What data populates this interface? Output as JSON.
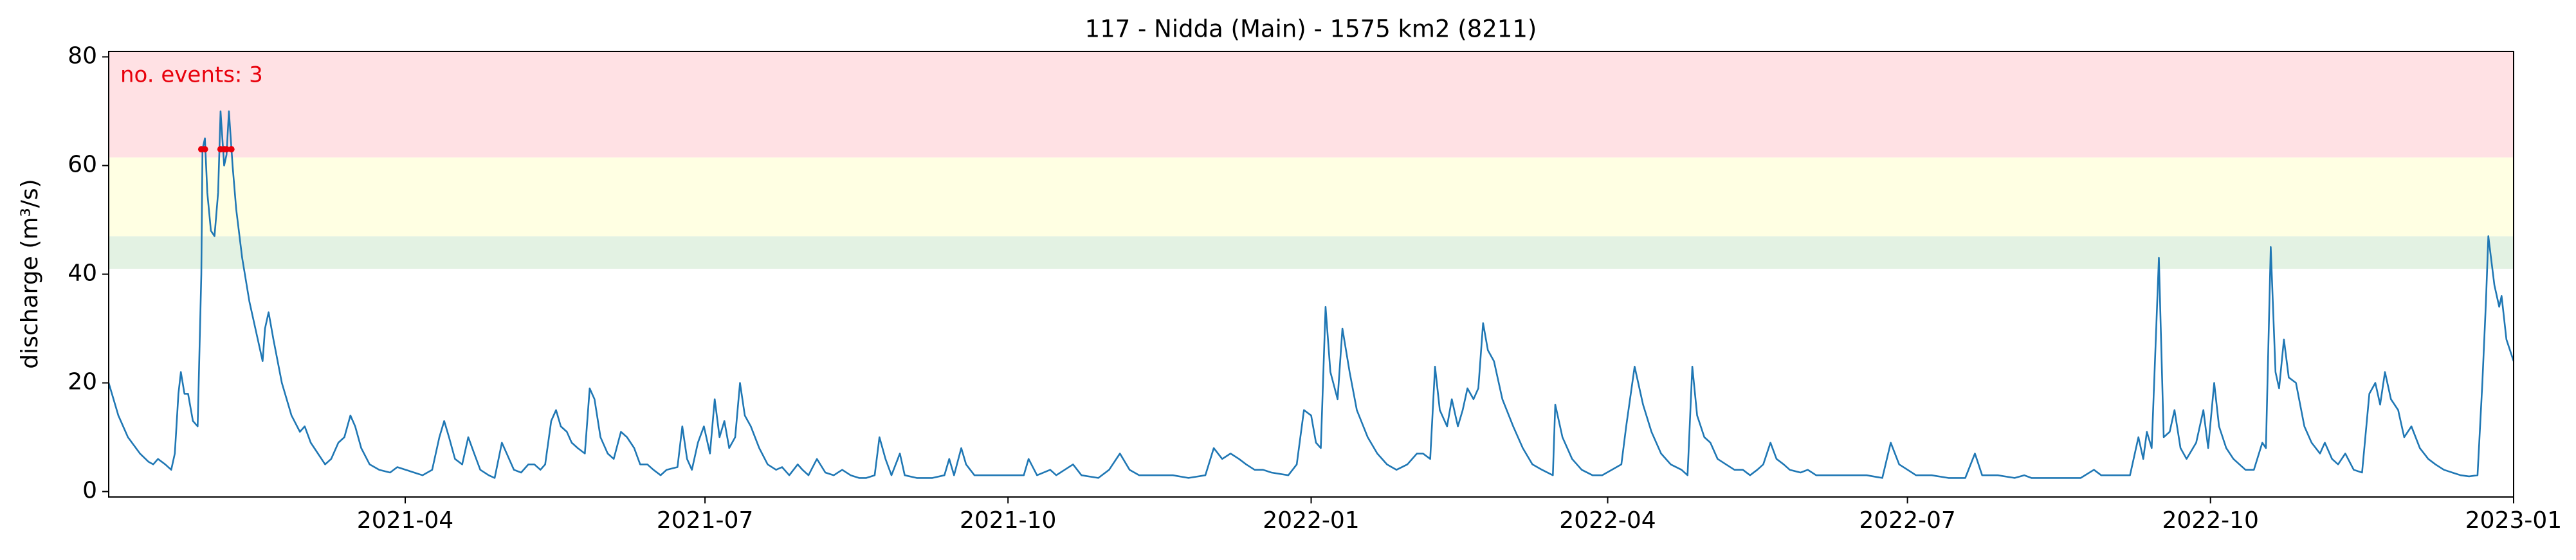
{
  "chart_data": {
    "type": "line",
    "title": "117 - Nidda (Main) - 1575 km2 (8211)",
    "y_label": "discharge (m³/s)",
    "annotation": "no. events: 3",
    "annotation_color": "#e8000b",
    "color": "#1f77b4",
    "x": [
      2021.0,
      2021.008,
      2021.016,
      2021.026,
      2021.033,
      2021.037,
      2021.041,
      2021.047,
      2021.052,
      2021.055,
      2021.058,
      2021.06,
      2021.063,
      2021.066,
      2021.07,
      2021.074,
      2021.077,
      2021.078,
      2021.08,
      2021.082,
      2021.085,
      2021.088,
      2021.091,
      2021.093,
      2021.096,
      2021.098,
      2021.1,
      2021.103,
      2021.106,
      2021.111,
      2021.117,
      2021.124,
      2021.128,
      2021.13,
      2021.133,
      2021.137,
      2021.144,
      2021.152,
      2021.159,
      2021.163,
      2021.168,
      2021.174,
      2021.18,
      2021.185,
      2021.191,
      2021.196,
      2021.201,
      2021.205,
      2021.21,
      2021.217,
      2021.225,
      2021.234,
      2021.24,
      2021.247,
      2021.254,
      2021.261,
      2021.269,
      2021.275,
      2021.279,
      2021.283,
      2021.288,
      2021.294,
      2021.299,
      2021.304,
      2021.309,
      2021.316,
      2021.321,
      2021.327,
      2021.331,
      2021.337,
      2021.343,
      2021.349,
      2021.354,
      2021.359,
      2021.363,
      2021.368,
      2021.372,
      2021.376,
      2021.381,
      2021.385,
      2021.39,
      2021.396,
      2021.4,
      2021.404,
      2021.409,
      2021.415,
      2021.42,
      2021.426,
      2021.431,
      2021.437,
      2021.442,
      2021.448,
      2021.453,
      2021.459,
      2021.464,
      2021.473,
      2021.477,
      2021.481,
      2021.485,
      2021.49,
      2021.495,
      2021.5,
      2021.504,
      2021.508,
      2021.512,
      2021.516,
      2021.521,
      2021.525,
      2021.529,
      2021.534,
      2021.541,
      2021.548,
      2021.555,
      2021.56,
      2021.566,
      2021.573,
      2021.577,
      2021.582,
      2021.589,
      2021.596,
      2021.603,
      2021.61,
      2021.617,
      2021.624,
      2021.63,
      2021.637,
      2021.641,
      2021.646,
      2021.651,
      2021.658,
      2021.662,
      2021.672,
      2021.685,
      2021.695,
      2021.699,
      2021.703,
      2021.709,
      2021.713,
      2021.72,
      2021.734,
      2021.747,
      2021.761,
      2021.765,
      2021.772,
      2021.783,
      2021.788,
      2021.802,
      2021.809,
      2021.823,
      2021.832,
      2021.841,
      2021.849,
      2021.857,
      2021.871,
      2021.885,
      2021.898,
      2021.912,
      2021.919,
      2021.926,
      2021.933,
      2021.94,
      2021.946,
      2021.953,
      2021.96,
      2021.967,
      2021.981,
      2021.988,
      2021.994,
      2022.0,
      2022.004,
      2022.008,
      2022.012,
      2022.016,
      2022.022,
      2022.026,
      2022.032,
      2022.038,
      2022.047,
      2022.055,
      2022.063,
      2022.071,
      2022.08,
      2022.088,
      2022.093,
      2022.099,
      2022.103,
      2022.107,
      2022.113,
      2022.117,
      2022.122,
      2022.126,
      2022.13,
      2022.135,
      2022.139,
      2022.143,
      2022.147,
      2022.152,
      2022.159,
      2022.168,
      2022.176,
      2022.184,
      2022.192,
      2022.201,
      2022.203,
      2022.209,
      2022.217,
      2022.225,
      2022.234,
      2022.242,
      2022.25,
      2022.258,
      2022.262,
      2022.269,
      2022.276,
      2022.283,
      2022.291,
      2022.299,
      2022.308,
      2022.313,
      2022.317,
      2022.321,
      2022.327,
      2022.332,
      2022.338,
      2022.345,
      2022.352,
      2022.359,
      2022.365,
      2022.371,
      2022.376,
      2022.382,
      2022.387,
      2022.393,
      2022.398,
      2022.407,
      2022.413,
      2022.42,
      2022.434,
      2022.448,
      2022.462,
      2022.475,
      2022.482,
      2022.489,
      2022.496,
      2022.503,
      2022.516,
      2022.53,
      2022.544,
      2022.552,
      2022.558,
      2022.571,
      2022.585,
      2022.593,
      2022.599,
      2022.613,
      2022.626,
      2022.64,
      2022.651,
      2022.657,
      2022.668,
      2022.681,
      2022.688,
      2022.692,
      2022.695,
      2022.699,
      2022.705,
      2022.709,
      2022.714,
      2022.718,
      2022.723,
      2022.728,
      2022.736,
      2022.742,
      2022.746,
      2022.751,
      2022.755,
      2022.761,
      2022.767,
      2022.772,
      2022.777,
      2022.784,
      2022.791,
      2022.794,
      2022.798,
      2022.802,
      2022.805,
      2022.809,
      2022.813,
      2022.819,
      2022.826,
      2022.832,
      2022.839,
      2022.843,
      2022.849,
      2022.854,
      2022.86,
      2022.867,
      2022.874,
      2022.88,
      2022.885,
      2022.889,
      2022.893,
      2022.898,
      2022.904,
      2022.909,
      2022.915,
      2022.922,
      2022.929,
      2022.935,
      2022.942,
      2022.949,
      2022.956,
      2022.963,
      2022.97,
      2022.974,
      2022.977,
      2022.979,
      2022.984,
      2022.988,
      2022.99,
      2022.994,
      2023.0
    ],
    "values": [
      20,
      14,
      10,
      7,
      5.5,
      5,
      6,
      5,
      4,
      7,
      18,
      22,
      18,
      18,
      13,
      12,
      40,
      63,
      65,
      55,
      48,
      47,
      55,
      70,
      60,
      62,
      70,
      60,
      52,
      43,
      35,
      28,
      24,
      30,
      33,
      28,
      20,
      14,
      11,
      12,
      9,
      7,
      5,
      6,
      9,
      10,
      14,
      12,
      8,
      5,
      4,
      3.5,
      4.5,
      4,
      3.5,
      3,
      4,
      10,
      13,
      10,
      6,
      5,
      10,
      7,
      4,
      3,
      2.5,
      9,
      7,
      4,
      3.5,
      5,
      5,
      4,
      5,
      13,
      15,
      12,
      11,
      9,
      8,
      7,
      19,
      17,
      10,
      7,
      6,
      11,
      10,
      8,
      5,
      5,
      4,
      3,
      4,
      4.5,
      12,
      6,
      4,
      9,
      12,
      7,
      17,
      10,
      13,
      8,
      10,
      20,
      14,
      12,
      8,
      5,
      4,
      4.5,
      3,
      5,
      4,
      3,
      6,
      3.5,
      3,
      4,
      3,
      2.5,
      2.5,
      3,
      10,
      6,
      3,
      7,
      3,
      2.5,
      2.5,
      3,
      6,
      3,
      8,
      5,
      3,
      3,
      3,
      3,
      6,
      3,
      4,
      3,
      5,
      3,
      2.5,
      4,
      7,
      4,
      3,
      3,
      3,
      2.5,
      3,
      8,
      6,
      7,
      6,
      5,
      4,
      4,
      3.5,
      3,
      5,
      15,
      14,
      9,
      8,
      34,
      22,
      17,
      30,
      22,
      15,
      10,
      7,
      5,
      4,
      5,
      7,
      7,
      6,
      23,
      15,
      12,
      17,
      12,
      15,
      19,
      17,
      19,
      31,
      26,
      24,
      17,
      12,
      8,
      5,
      4,
      3,
      16,
      10,
      6,
      4,
      3,
      3,
      4,
      5,
      12,
      23,
      16,
      11,
      7,
      5,
      4,
      3,
      23,
      14,
      10,
      9,
      6,
      5,
      4,
      4,
      3,
      4,
      5,
      9,
      6,
      5,
      4,
      3.5,
      4,
      3,
      3,
      3,
      3,
      2.5,
      9,
      5,
      4,
      3,
      3,
      2.5,
      2.5,
      7,
      3,
      3,
      2.5,
      3,
      2.5,
      2.5,
      2.5,
      2.5,
      4,
      3,
      3,
      3,
      10,
      6,
      11,
      8,
      43,
      10,
      11,
      15,
      8,
      6,
      9,
      15,
      8,
      20,
      12,
      8,
      6,
      5,
      4,
      4,
      9,
      8,
      45,
      22,
      19,
      28,
      21,
      20,
      12,
      9,
      7,
      9,
      6,
      5,
      7,
      4,
      3.5,
      18,
      20,
      16,
      22,
      17,
      15,
      10,
      12,
      8,
      6,
      5,
      4,
      3.5,
      3,
      2.8,
      3,
      20,
      35,
      47,
      38,
      34,
      36,
      28,
      24
    ],
    "bands": [
      {
        "ymin": 41,
        "ymax": 47,
        "color": "#e3f2e3"
      },
      {
        "ymin": 47,
        "ymax": 61.5,
        "color": "#ffffe3"
      },
      {
        "ymin": 61.5,
        "ymax": 81,
        "color": "#ffe1e4"
      }
    ],
    "events": [
      {
        "x": [
          2021.077,
          2021.08
        ],
        "y": 63
      },
      {
        "x": [
          2021.093,
          2021.096
        ],
        "y": 63
      },
      {
        "x": [
          2021.098,
          2021.102
        ],
        "y": 63
      }
    ],
    "event_color": "#e8000b",
    "xlim": [
      2021.0,
      2023.0
    ],
    "xticks": [
      {
        "value": 2021.2466,
        "label": "2021-04"
      },
      {
        "value": 2021.4959,
        "label": "2021-07"
      },
      {
        "value": 2021.7479,
        "label": "2021-10"
      },
      {
        "value": 2022.0,
        "label": "2022-01"
      },
      {
        "value": 2022.2466,
        "label": "2022-04"
      },
      {
        "value": 2022.4959,
        "label": "2022-07"
      },
      {
        "value": 2022.7479,
        "label": "2022-10"
      },
      {
        "value": 2023.0,
        "label": "2023-01"
      }
    ],
    "ylim": [
      -1,
      81
    ],
    "yticks": [
      0,
      20,
      40,
      60,
      80
    ]
  }
}
